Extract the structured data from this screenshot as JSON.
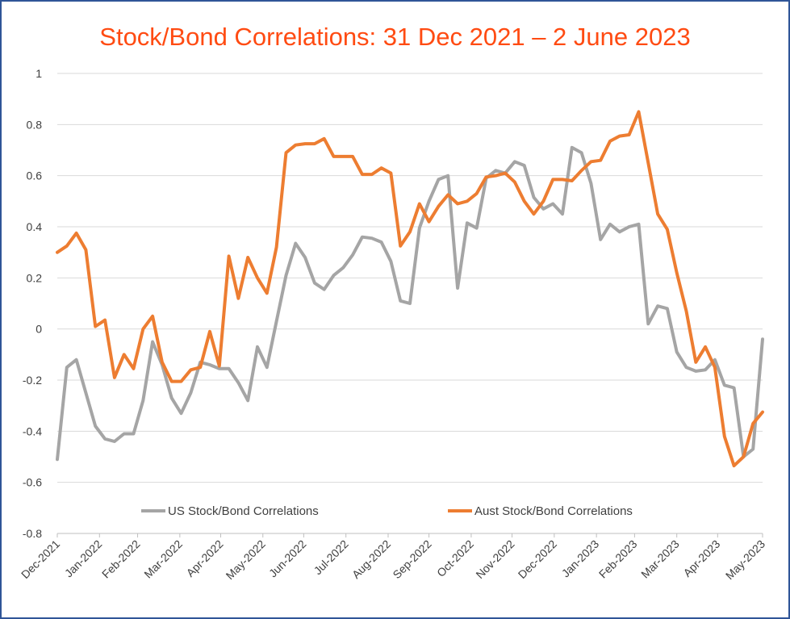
{
  "chart_data": {
    "type": "line",
    "title": "Stock/Bond Correlations: 31 Dec 2021 – 2 June 2023",
    "xlabel": "",
    "ylabel": "",
    "ylim": [
      -0.8,
      1
    ],
    "yticks": [
      "1",
      "0.8",
      "0.6",
      "0.4",
      "0.2",
      "0",
      "-0.2",
      "-0.4",
      "-0.6",
      "-0.8"
    ],
    "yticks_values": [
      1,
      0.8,
      0.6,
      0.4,
      0.2,
      0,
      -0.2,
      -0.4,
      -0.6,
      -0.8
    ],
    "xticks": [
      "Dec-2021",
      "Jan-2022",
      "Feb-2022",
      "Mar-2022",
      "Apr-2022",
      "May-2022",
      "Jun-2022",
      "Jul-2022",
      "Aug-2022",
      "Sep-2022",
      "Oct-2022",
      "Nov-2022",
      "Dec-2022",
      "Jan-2023",
      "Feb-2023",
      "Mar-2023",
      "Apr-2023",
      "May-2023"
    ],
    "grid": "horizontal",
    "legend": "bottom",
    "x": [
      "2021-12-31",
      "2022-01-07",
      "2022-01-14",
      "2022-01-21",
      "2022-01-28",
      "2022-02-04",
      "2022-02-11",
      "2022-02-18",
      "2022-02-25",
      "2022-03-04",
      "2022-03-11",
      "2022-03-18",
      "2022-03-25",
      "2022-04-01",
      "2022-04-08",
      "2022-04-15",
      "2022-04-22",
      "2022-04-29",
      "2022-05-06",
      "2022-05-13",
      "2022-05-20",
      "2022-05-27",
      "2022-06-03",
      "2022-06-10",
      "2022-06-17",
      "2022-06-24",
      "2022-07-01",
      "2022-07-08",
      "2022-07-15",
      "2022-07-22",
      "2022-07-29",
      "2022-08-05",
      "2022-08-12",
      "2022-08-19",
      "2022-08-26",
      "2022-09-02",
      "2022-09-09",
      "2022-09-16",
      "2022-09-23",
      "2022-09-30",
      "2022-10-07",
      "2022-10-14",
      "2022-10-21",
      "2022-10-28",
      "2022-11-04",
      "2022-11-11",
      "2022-11-18",
      "2022-11-25",
      "2022-12-02",
      "2022-12-09",
      "2022-12-16",
      "2022-12-23",
      "2022-12-30",
      "2023-01-06",
      "2023-01-13",
      "2023-01-20",
      "2023-01-27",
      "2023-02-03",
      "2023-02-10",
      "2023-02-17",
      "2023-02-24",
      "2023-03-03",
      "2023-03-10",
      "2023-03-17",
      "2023-03-24",
      "2023-03-31",
      "2023-04-07",
      "2023-04-14",
      "2023-04-21",
      "2023-04-28",
      "2023-05-05",
      "2023-05-12",
      "2023-05-19",
      "2023-05-26",
      "2023-06-02"
    ],
    "series": [
      {
        "name": "US Stock/Bond Correlations",
        "color": "#a5a5a5",
        "values": [
          -0.51,
          -0.15,
          -0.12,
          -0.25,
          -0.38,
          -0.43,
          -0.44,
          -0.41,
          -0.41,
          -0.28,
          -0.05,
          -0.14,
          -0.27,
          -0.33,
          -0.25,
          -0.13,
          -0.14,
          -0.155,
          -0.155,
          -0.21,
          -0.28,
          -0.07,
          -0.15,
          0.03,
          0.21,
          0.335,
          0.28,
          0.18,
          0.155,
          0.21,
          0.24,
          0.29,
          0.36,
          0.355,
          0.34,
          0.265,
          0.11,
          0.1,
          0.395,
          0.5,
          0.585,
          0.6,
          0.16,
          0.415,
          0.395,
          0.59,
          0.62,
          0.61,
          0.655,
          0.64,
          0.515,
          0.47,
          0.49,
          0.45,
          0.71,
          0.69,
          0.57,
          0.35,
          0.41,
          0.38,
          0.4,
          0.41,
          0.02,
          0.09,
          0.08,
          -0.09,
          -0.15,
          -0.165,
          -0.16,
          -0.12,
          -0.22,
          -0.23,
          -0.5,
          -0.47,
          -0.04
        ]
      },
      {
        "name": "Aust Stock/Bond Correlations",
        "color": "#ed7d31",
        "values": [
          0.3,
          0.325,
          0.375,
          0.31,
          0.01,
          0.035,
          -0.19,
          -0.1,
          -0.155,
          0.0,
          0.05,
          -0.13,
          -0.205,
          -0.205,
          -0.16,
          -0.15,
          -0.01,
          -0.145,
          0.285,
          0.12,
          0.28,
          0.2,
          0.14,
          0.32,
          0.69,
          0.72,
          0.725,
          0.725,
          0.745,
          0.675,
          0.675,
          0.675,
          0.605,
          0.605,
          0.63,
          0.61,
          0.325,
          0.38,
          0.49,
          0.42,
          0.48,
          0.525,
          0.49,
          0.5,
          0.53,
          0.595,
          0.6,
          0.61,
          0.575,
          0.5,
          0.45,
          0.5,
          0.585,
          0.585,
          0.58,
          0.62,
          0.655,
          0.66,
          0.735,
          0.755,
          0.76,
          0.85,
          0.65,
          0.45,
          0.39,
          0.22,
          0.07,
          -0.13,
          -0.07,
          -0.15,
          -0.42,
          -0.535,
          -0.5,
          -0.37,
          -0.325
        ]
      }
    ]
  }
}
